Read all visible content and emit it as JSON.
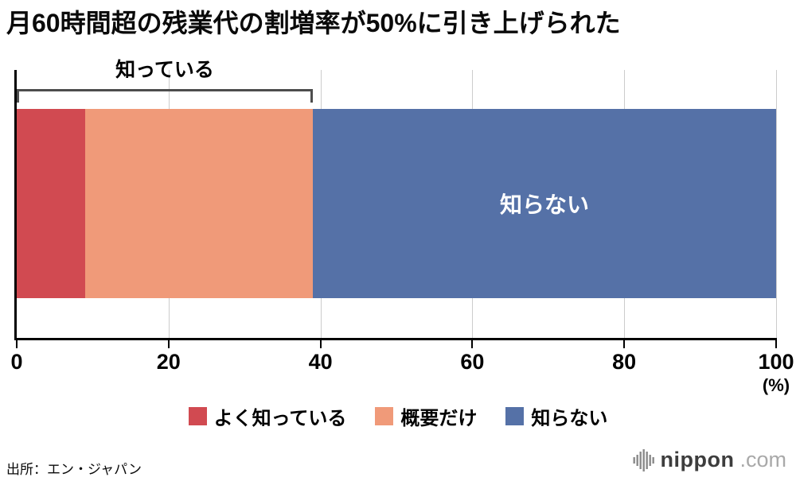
{
  "title": "月60時間超の残業代の割増率が50%に引き上げられた",
  "chart_data": {
    "type": "bar",
    "orientation": "horizontal-stacked",
    "title": "月60時間超の残業代の割増率が50%に引き上げられた",
    "series": [
      {
        "name": "よく知っている",
        "value": 9,
        "color": "#d14a51"
      },
      {
        "name": "概要だけ",
        "value": 30,
        "color": "#f09a79"
      },
      {
        "name": "知らない",
        "value": 61,
        "color": "#5571a7"
      }
    ],
    "inside_label": "知らない",
    "bracket": {
      "label": "知っている",
      "from": 0,
      "to": 39
    },
    "x_ticks": [
      0,
      20,
      40,
      60,
      80,
      100
    ],
    "x_unit": "(%)",
    "xlim": [
      0,
      100
    ],
    "grid": true,
    "legend_position": "bottom"
  },
  "legend": {
    "items": [
      {
        "label": "よく知っている",
        "color": "#d14a51"
      },
      {
        "label": "概要だけ",
        "color": "#f09a79"
      },
      {
        "label": "知らない",
        "color": "#5571a7"
      }
    ]
  },
  "footer": {
    "source": "出所：エン・ジャパン",
    "logo": {
      "name": "nippon",
      "tld": ".com"
    }
  }
}
